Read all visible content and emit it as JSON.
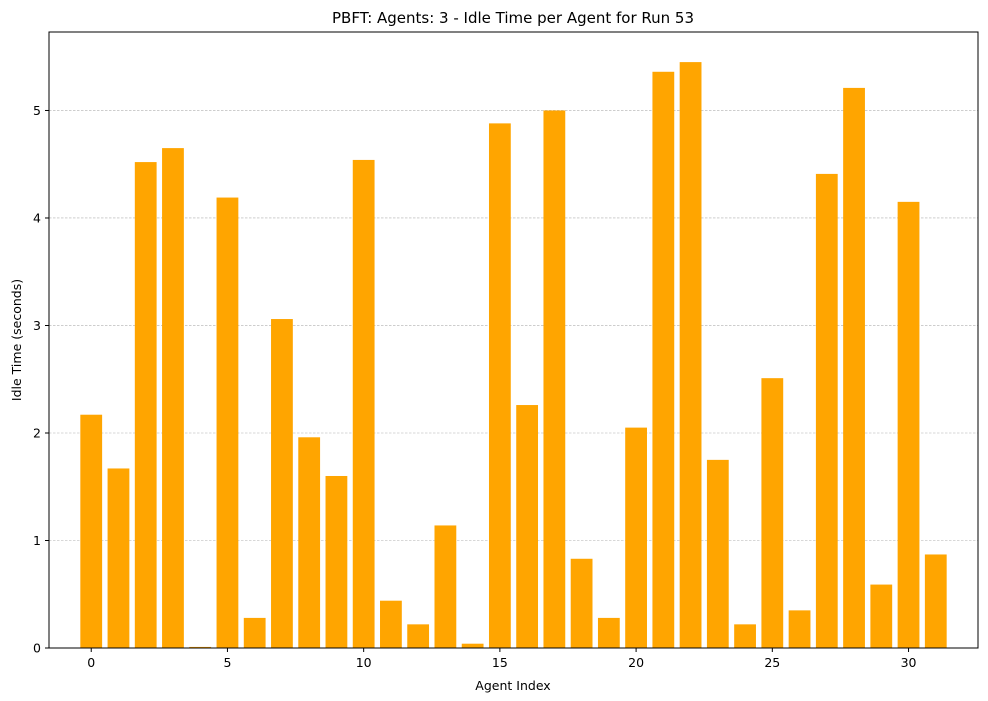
{
  "chart_data": {
    "type": "bar",
    "title": "PBFT: Agents: 3 - Idle Time per Agent for Run 53",
    "xlabel": "Agent Index",
    "ylabel": "Idle Time (seconds)",
    "bar_color": "#FFA500",
    "grid": {
      "y": true,
      "x": false,
      "style": "dashed",
      "color": "#b0b0b0"
    },
    "xlim": [
      -1.55,
      32.55
    ],
    "ylim": [
      0,
      5.73
    ],
    "xticks": [
      0,
      5,
      10,
      15,
      20,
      25,
      30
    ],
    "yticks": [
      0,
      1,
      2,
      3,
      4,
      5
    ],
    "categories": [
      0,
      1,
      2,
      3,
      4,
      5,
      6,
      7,
      8,
      9,
      10,
      11,
      12,
      13,
      14,
      15,
      16,
      17,
      18,
      19,
      20,
      21,
      22,
      23,
      24,
      25,
      26,
      27,
      28,
      29,
      30,
      31
    ],
    "values": [
      2.17,
      1.67,
      4.52,
      4.65,
      0.01,
      4.19,
      0.28,
      3.06,
      1.96,
      1.6,
      4.54,
      0.44,
      0.22,
      1.14,
      0.04,
      4.88,
      2.26,
      5.0,
      0.83,
      0.28,
      2.05,
      5.36,
      5.45,
      1.75,
      0.22,
      2.51,
      0.35,
      4.41,
      5.21,
      0.59,
      4.15,
      0.87
    ]
  }
}
